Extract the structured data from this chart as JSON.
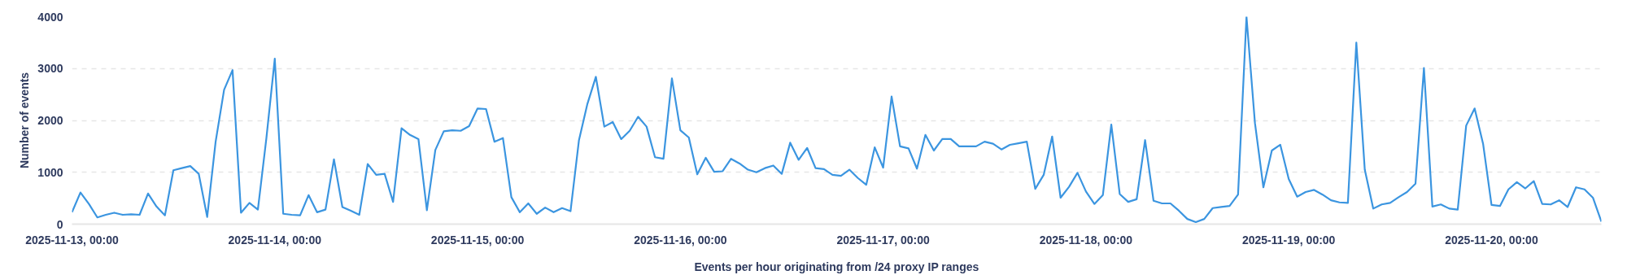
{
  "chart_data": {
    "type": "line",
    "xlabel": "Events per hour originating from /24 proxy IP ranges",
    "ylabel": "Number of events",
    "x": [
      "2025-11-13T00:00",
      "2025-11-13T01:00",
      "2025-11-13T02:00",
      "2025-11-13T03:00",
      "2025-11-13T04:00",
      "2025-11-13T05:00",
      "2025-11-13T06:00",
      "2025-11-13T07:00",
      "2025-11-13T08:00",
      "2025-11-13T09:00",
      "2025-11-13T10:00",
      "2025-11-13T11:00",
      "2025-11-13T12:00",
      "2025-11-13T13:00",
      "2025-11-13T14:00",
      "2025-11-13T15:00",
      "2025-11-13T16:00",
      "2025-11-13T17:00",
      "2025-11-13T18:00",
      "2025-11-13T19:00",
      "2025-11-13T20:00",
      "2025-11-13T21:00",
      "2025-11-13T22:00",
      "2025-11-13T23:00",
      "2025-11-14T00:00",
      "2025-11-14T01:00",
      "2025-11-14T02:00",
      "2025-11-14T03:00",
      "2025-11-14T04:00",
      "2025-11-14T05:00",
      "2025-11-14T06:00",
      "2025-11-14T07:00",
      "2025-11-14T08:00",
      "2025-11-14T09:00",
      "2025-11-14T10:00",
      "2025-11-14T11:00",
      "2025-11-14T12:00",
      "2025-11-14T13:00",
      "2025-11-14T14:00",
      "2025-11-14T15:00",
      "2025-11-14T16:00",
      "2025-11-14T17:00",
      "2025-11-14T18:00",
      "2025-11-14T19:00",
      "2025-11-14T20:00",
      "2025-11-14T21:00",
      "2025-11-14T22:00",
      "2025-11-14T23:00",
      "2025-11-15T00:00",
      "2025-11-15T01:00",
      "2025-11-15T02:00",
      "2025-11-15T03:00",
      "2025-11-15T04:00",
      "2025-11-15T05:00",
      "2025-11-15T06:00",
      "2025-11-15T07:00",
      "2025-11-15T08:00",
      "2025-11-15T09:00",
      "2025-11-15T10:00",
      "2025-11-15T11:00",
      "2025-11-15T12:00",
      "2025-11-15T13:00",
      "2025-11-15T14:00",
      "2025-11-15T15:00",
      "2025-11-15T16:00",
      "2025-11-15T17:00",
      "2025-11-15T18:00",
      "2025-11-15T19:00",
      "2025-11-15T20:00",
      "2025-11-15T21:00",
      "2025-11-15T22:00",
      "2025-11-15T23:00",
      "2025-11-16T00:00",
      "2025-11-16T01:00",
      "2025-11-16T02:00",
      "2025-11-16T03:00",
      "2025-11-16T04:00",
      "2025-11-16T05:00",
      "2025-11-16T06:00",
      "2025-11-16T07:00",
      "2025-11-16T08:00",
      "2025-11-16T09:00",
      "2025-11-16T10:00",
      "2025-11-16T11:00",
      "2025-11-16T12:00",
      "2025-11-16T13:00",
      "2025-11-16T14:00",
      "2025-11-16T15:00",
      "2025-11-16T16:00",
      "2025-11-16T17:00",
      "2025-11-16T18:00",
      "2025-11-16T19:00",
      "2025-11-16T20:00",
      "2025-11-16T21:00",
      "2025-11-16T22:00",
      "2025-11-16T23:00",
      "2025-11-17T00:00",
      "2025-11-17T01:00",
      "2025-11-17T02:00",
      "2025-11-17T03:00",
      "2025-11-17T04:00",
      "2025-11-17T05:00",
      "2025-11-17T06:00",
      "2025-11-17T07:00",
      "2025-11-17T08:00",
      "2025-11-17T09:00",
      "2025-11-17T10:00",
      "2025-11-17T11:00",
      "2025-11-17T12:00",
      "2025-11-17T13:00",
      "2025-11-17T14:00",
      "2025-11-17T15:00",
      "2025-11-17T16:00",
      "2025-11-17T17:00",
      "2025-11-17T18:00",
      "2025-11-17T19:00",
      "2025-11-17T20:00",
      "2025-11-17T21:00",
      "2025-11-17T22:00",
      "2025-11-17T23:00",
      "2025-11-18T00:00",
      "2025-11-18T01:00",
      "2025-11-18T02:00",
      "2025-11-18T03:00",
      "2025-11-18T04:00",
      "2025-11-18T05:00",
      "2025-11-18T06:00",
      "2025-11-18T07:00",
      "2025-11-18T08:00",
      "2025-11-18T09:00",
      "2025-11-18T10:00",
      "2025-11-18T11:00",
      "2025-11-18T12:00",
      "2025-11-18T13:00",
      "2025-11-18T14:00",
      "2025-11-18T15:00",
      "2025-11-18T16:00",
      "2025-11-18T17:00",
      "2025-11-18T18:00",
      "2025-11-18T19:00",
      "2025-11-18T20:00",
      "2025-11-18T21:00",
      "2025-11-18T22:00",
      "2025-11-18T23:00",
      "2025-11-19T00:00",
      "2025-11-19T01:00",
      "2025-11-19T02:00",
      "2025-11-19T03:00",
      "2025-11-19T04:00",
      "2025-11-19T05:00",
      "2025-11-19T06:00",
      "2025-11-19T07:00",
      "2025-11-19T08:00",
      "2025-11-19T09:00",
      "2025-11-19T10:00",
      "2025-11-19T11:00",
      "2025-11-19T12:00",
      "2025-11-19T13:00",
      "2025-11-19T14:00",
      "2025-11-19T15:00",
      "2025-11-19T16:00",
      "2025-11-19T17:00",
      "2025-11-19T18:00",
      "2025-11-19T19:00",
      "2025-11-19T20:00",
      "2025-11-19T21:00",
      "2025-11-19T22:00",
      "2025-11-19T23:00",
      "2025-11-20T00:00",
      "2025-11-20T01:00",
      "2025-11-20T02:00",
      "2025-11-20T03:00",
      "2025-11-20T04:00",
      "2025-11-20T05:00",
      "2025-11-20T06:00",
      "2025-11-20T07:00",
      "2025-11-20T08:00",
      "2025-11-20T09:00",
      "2025-11-20T10:00",
      "2025-11-20T11:00",
      "2025-11-20T12:00",
      "2025-11-20T13:00"
    ],
    "series": [
      {
        "color": "#3b95e0",
        "values": [
          230,
          610,
          390,
          130,
          180,
          220,
          180,
          190,
          180,
          590,
          340,
          170,
          1040,
          1080,
          1120,
          970,
          140,
          1590,
          2590,
          2970,
          220,
          410,
          280,
          1650,
          3190,
          200,
          180,
          170,
          560,
          230,
          280,
          1250,
          330,
          260,
          180,
          1160,
          950,
          970,
          430,
          1850,
          1720,
          1640,
          270,
          1430,
          1790,
          1810,
          1800,
          1890,
          2230,
          2220,
          1590,
          1660,
          520,
          230,
          400,
          200,
          320,
          230,
          310,
          250,
          1620,
          2320,
          2840,
          1880,
          1970,
          1640,
          1800,
          2070,
          1880,
          1290,
          1260,
          2810,
          1810,
          1670,
          960,
          1280,
          1010,
          1020,
          1260,
          1170,
          1050,
          1000,
          1080,
          1130,
          970,
          1570,
          1240,
          1470,
          1080,
          1060,
          950,
          930,
          1050,
          890,
          760,
          1480,
          1090,
          2460,
          1500,
          1460,
          1070,
          1720,
          1420,
          1640,
          1640,
          1500,
          1500,
          1500,
          1590,
          1550,
          1440,
          1530,
          1560,
          1590,
          680,
          950,
          1690,
          510,
          720,
          990,
          630,
          390,
          560,
          1920,
          580,
          430,
          480,
          1620,
          450,
          400,
          400,
          260,
          100,
          40,
          100,
          310,
          330,
          350,
          570,
          4000,
          1950,
          710,
          1420,
          1530,
          870,
          530,
          620,
          660,
          570,
          460,
          420,
          410,
          3500,
          1050,
          300,
          380,
          410,
          520,
          620,
          780,
          3010,
          340,
          380,
          300,
          280,
          1900,
          2230,
          1550,
          370,
          350,
          670,
          810,
          690,
          830,
          390,
          380,
          460,
          330,
          710,
          670,
          510,
          50
        ]
      }
    ],
    "xlim": [
      "2025-11-13T00:00",
      "2025-11-20T13:00"
    ],
    "xticks": [
      {
        "value": "2025-11-13T00:00",
        "label": "2025-11-13, 00:00"
      },
      {
        "value": "2025-11-14T00:00",
        "label": "2025-11-14, 00:00"
      },
      {
        "value": "2025-11-15T00:00",
        "label": "2025-11-15, 00:00"
      },
      {
        "value": "2025-11-16T00:00",
        "label": "2025-11-16, 00:00"
      },
      {
        "value": "2025-11-17T00:00",
        "label": "2025-11-17, 00:00"
      },
      {
        "value": "2025-11-18T00:00",
        "label": "2025-11-18, 00:00"
      },
      {
        "value": "2025-11-19T00:00",
        "label": "2025-11-19, 00:00"
      },
      {
        "value": "2025-11-20T00:00",
        "label": "2025-11-20, 00:00"
      }
    ],
    "ylim": [
      0,
      4000
    ],
    "yticks": [
      0,
      1000,
      2000,
      3000,
      4000
    ],
    "grid": "y",
    "line_style": "solid"
  }
}
